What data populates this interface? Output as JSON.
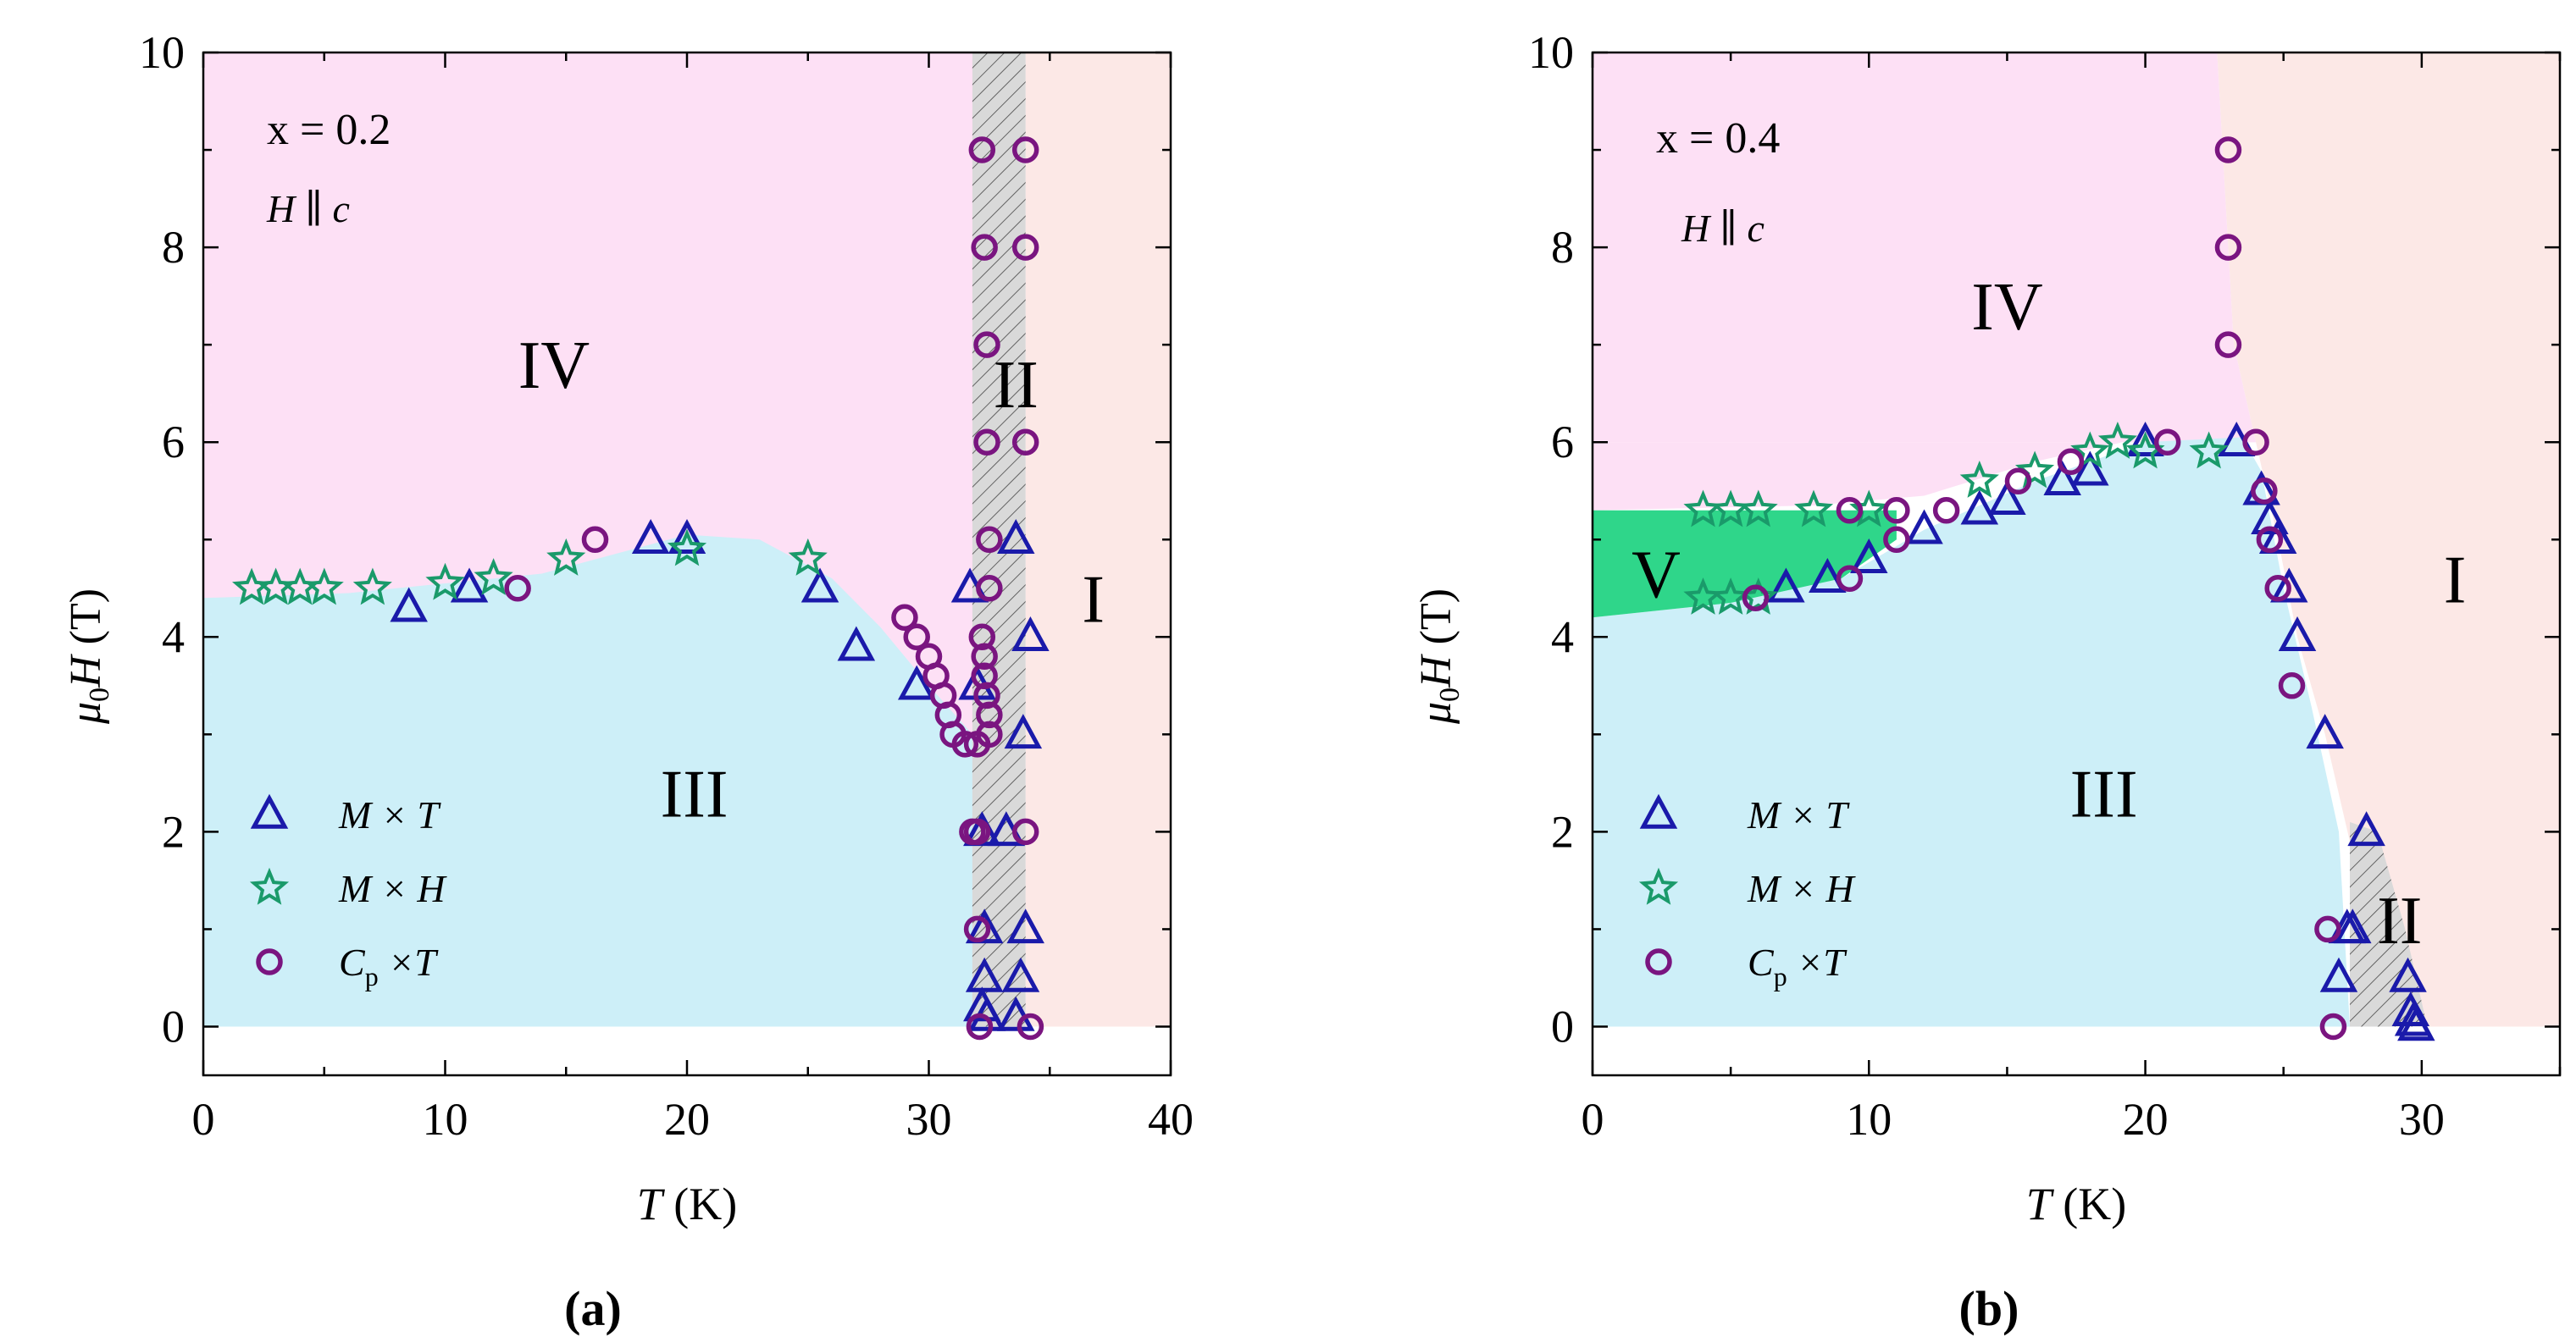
{
  "figure": {
    "colors": {
      "phase_I": "#fce8e6",
      "phase_II": "#d9d9d9",
      "phase_III": "#cdeff8",
      "phase_IV": "#fde0f5",
      "phase_V": "#2fd68a",
      "MxT": "#1a1aaa",
      "MxH": "#1a9a6a",
      "CpxT": "#7a1580"
    },
    "legend": {
      "MxT": "M × T",
      "MxH": "M × H",
      "Cp_main": "C",
      "Cp_sub": "p",
      "Cp_rest": " ×T"
    }
  },
  "chart_data": [
    {
      "type": "scatter",
      "panel_label": "(a)",
      "annotation_x": "x = 0.2",
      "annotation_h": "H ∥ c",
      "xlabel": "T (K)",
      "ylabel": "μ0H (T)",
      "xlim": [
        0,
        40
      ],
      "ylim": [
        -0.5,
        10
      ],
      "xticks": [
        0,
        10,
        20,
        30,
        40
      ],
      "yticks": [
        0,
        2,
        4,
        6,
        8,
        10
      ],
      "regions": [
        {
          "name": "I",
          "label": "I",
          "label_at": [
            36.8,
            4.4
          ]
        },
        {
          "name": "II",
          "label": "II",
          "label_at": [
            33.6,
            6.6
          ]
        },
        {
          "name": "III",
          "label": "III",
          "label_at": [
            20.3,
            2.4
          ]
        },
        {
          "name": "IV",
          "label": "IV",
          "label_at": [
            14.5,
            6.8
          ]
        }
      ],
      "series": [
        {
          "name": "M × T",
          "marker": "triangle",
          "x": [
            8.5,
            11,
            18.5,
            20,
            25.5,
            27,
            29.5,
            31.7,
            32,
            32.2,
            32.2,
            32.3,
            32.3,
            32.4,
            33.2,
            33.6,
            33.9,
            33.6,
            33.8,
            34.2,
            34
          ],
          "y": [
            4.3,
            4.5,
            5.0,
            5.0,
            4.5,
            3.9,
            3.5,
            4.5,
            3.5,
            2.0,
            0.2,
            0.5,
            1.0,
            0.1,
            2.0,
            5.0,
            3.0,
            0.1,
            0.5,
            4.0,
            1.0
          ]
        },
        {
          "name": "M × H",
          "marker": "star",
          "x": [
            2,
            3,
            4,
            5,
            7,
            10,
            12,
            15,
            20,
            25
          ],
          "y": [
            4.5,
            4.5,
            4.5,
            4.5,
            4.5,
            4.55,
            4.6,
            4.8,
            4.9,
            4.8
          ]
        },
        {
          "name": "Cp × T",
          "marker": "circle",
          "x": [
            13,
            16.2,
            29,
            29.5,
            30,
            30.3,
            30.6,
            30.8,
            31,
            31.5,
            32,
            32,
            32.1,
            32.2,
            32.3,
            32.3,
            32.4,
            32.5,
            32.5,
            32.5,
            32.5,
            32.4,
            32.4,
            32.3,
            32.2,
            32,
            31.8,
            34,
            34,
            34,
            34,
            34.2
          ],
          "y": [
            4.5,
            5.0,
            4.2,
            4.0,
            3.8,
            3.6,
            3.4,
            3.2,
            3.0,
            2.9,
            2.0,
            1.0,
            0.0,
            4.0,
            3.8,
            3.6,
            3.4,
            3.2,
            3.0,
            4.5,
            5.0,
            6.0,
            7.0,
            8.0,
            9.0,
            2.9,
            2.0,
            9.0,
            8.0,
            6.0,
            2.0,
            0.0
          ]
        }
      ]
    },
    {
      "type": "scatter",
      "panel_label": "(b)",
      "annotation_x": "x = 0.4",
      "annotation_h": "H ∥ c",
      "xlabel": "T (K)",
      "ylabel": "μ0H (T)",
      "xlim": [
        0,
        35
      ],
      "ylim": [
        -0.5,
        10
      ],
      "xticks": [
        0,
        10,
        20,
        30
      ],
      "yticks": [
        0,
        2,
        4,
        6,
        8,
        10
      ],
      "regions": [
        {
          "name": "I",
          "label": "I",
          "label_at": [
            31.2,
            4.6
          ]
        },
        {
          "name": "II",
          "label": "II",
          "label_at": [
            29.2,
            1.1
          ]
        },
        {
          "name": "III",
          "label": "III",
          "label_at": [
            18.5,
            2.4
          ]
        },
        {
          "name": "IV",
          "label": "IV",
          "label_at": [
            15,
            7.4
          ]
        },
        {
          "name": "V",
          "label": "V",
          "label_at": [
            2.3,
            4.65
          ]
        }
      ],
      "series": [
        {
          "name": "M × T",
          "marker": "triangle",
          "x": [
            7,
            8.5,
            10,
            12,
            14,
            15,
            17,
            18,
            20,
            23.3,
            24.2,
            24.5,
            24.8,
            25.2,
            25.5,
            26.5,
            27,
            27.3,
            27.5,
            28,
            29.5,
            29.6,
            29.7,
            29.8
          ],
          "y": [
            4.5,
            4.6,
            4.8,
            5.1,
            5.3,
            5.4,
            5.6,
            5.7,
            6.0,
            6.0,
            5.5,
            5.2,
            5.0,
            4.5,
            4.0,
            3.0,
            0.5,
            1.0,
            1.0,
            2.0,
            0.5,
            0.15,
            0.05,
            0.0
          ]
        },
        {
          "name": "M × H",
          "marker": "star",
          "x": [
            4,
            5,
            6,
            8,
            10,
            4,
            5,
            6,
            14,
            16,
            18,
            19,
            20,
            22.3
          ],
          "y": [
            5.3,
            5.3,
            5.3,
            5.3,
            5.3,
            4.4,
            4.4,
            4.4,
            5.6,
            5.7,
            5.9,
            6.0,
            5.9,
            5.9
          ]
        },
        {
          "name": "Cp × T",
          "marker": "circle",
          "x": [
            5.9,
            9.3,
            9.3,
            11,
            11,
            12.8,
            15.4,
            17.3,
            20.8,
            23,
            23,
            23,
            24,
            24.3,
            24.5,
            24.8,
            25.3,
            26.6,
            26.8
          ],
          "y": [
            4.4,
            4.6,
            5.3,
            5.0,
            5.3,
            5.3,
            5.6,
            5.8,
            6.0,
            9.0,
            8.0,
            7.0,
            6.0,
            5.5,
            5.0,
            4.5,
            3.5,
            1.0,
            0.0
          ]
        }
      ]
    }
  ]
}
